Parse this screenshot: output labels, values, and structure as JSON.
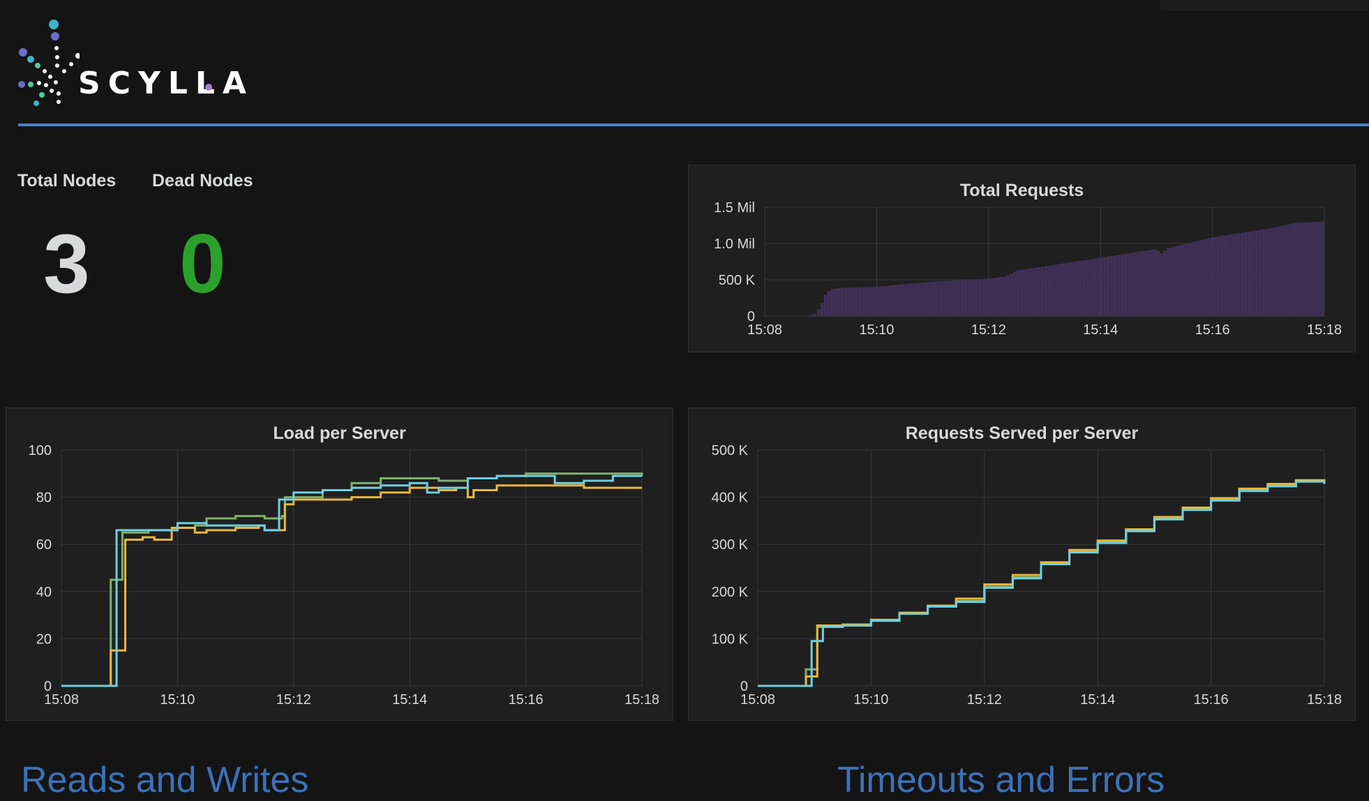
{
  "logo": {
    "text": "SCYLLA"
  },
  "stats": {
    "total_nodes": {
      "label": "Total Nodes",
      "value": "3"
    },
    "dead_nodes": {
      "label": "Dead Nodes",
      "value": "0",
      "color": "#2ca02c"
    }
  },
  "colors": {
    "accent": "#4a7fd4",
    "series": [
      "#7eb26d",
      "#eab839",
      "#6ed0e0"
    ],
    "bars": "#3e2e55"
  },
  "chart_data": [
    {
      "type": "bar",
      "title": "Total Requests",
      "xlabel": "",
      "ylabel": "",
      "x_ticks": [
        "15:08",
        "15:10",
        "15:12",
        "15:14",
        "15:16",
        "15:18"
      ],
      "y_ticks": [
        "0",
        "500 K",
        "1.0 Mil",
        "1.5 Mil"
      ],
      "xlim": [
        0,
        10
      ],
      "ylim": [
        0,
        1500000
      ],
      "grid": true,
      "points": [
        [
          0.8,
          0
        ],
        [
          0.9,
          20000
        ],
        [
          1.0,
          120000
        ],
        [
          1.1,
          300000
        ],
        [
          1.2,
          370000
        ],
        [
          1.5,
          390000
        ],
        [
          2.0,
          400000
        ],
        [
          3.0,
          470000
        ],
        [
          4.0,
          510000
        ],
        [
          4.3,
          540000
        ],
        [
          4.5,
          620000
        ],
        [
          5.0,
          680000
        ],
        [
          6.0,
          800000
        ],
        [
          7.0,
          920000
        ],
        [
          7.1,
          860000
        ],
        [
          7.2,
          930000
        ],
        [
          8.0,
          1080000
        ],
        [
          9.0,
          1200000
        ],
        [
          9.5,
          1280000
        ],
        [
          10.0,
          1300000
        ]
      ]
    },
    {
      "type": "line",
      "title": "Load per Server",
      "xlabel": "",
      "ylabel": "",
      "x_ticks": [
        "15:08",
        "15:10",
        "15:12",
        "15:14",
        "15:16",
        "15:18"
      ],
      "y_ticks": [
        "0",
        "20",
        "40",
        "60",
        "80",
        "100"
      ],
      "xlim": [
        0,
        10
      ],
      "ylim": [
        0,
        100
      ],
      "grid": true,
      "series": [
        {
          "color": "#7eb26d",
          "points": [
            [
              0,
              0
            ],
            [
              0.8,
              0
            ],
            [
              0.85,
              45
            ],
            [
              1.0,
              45
            ],
            [
              1.05,
              65
            ],
            [
              1.5,
              66
            ],
            [
              2.0,
              67
            ],
            [
              2.3,
              68
            ],
            [
              2.5,
              71
            ],
            [
              3.0,
              72
            ],
            [
              3.5,
              71
            ],
            [
              3.8,
              72
            ],
            [
              3.85,
              80
            ],
            [
              4.5,
              83
            ],
            [
              5.0,
              86
            ],
            [
              5.5,
              88
            ],
            [
              6.0,
              88
            ],
            [
              6.5,
              87
            ],
            [
              7.0,
              88
            ],
            [
              7.5,
              89
            ],
            [
              8.0,
              90
            ],
            [
              9.0,
              90
            ],
            [
              10.0,
              89
            ]
          ]
        },
        {
          "color": "#eab839",
          "points": [
            [
              0,
              0
            ],
            [
              0.8,
              0
            ],
            [
              0.85,
              15
            ],
            [
              1.05,
              15
            ],
            [
              1.1,
              62
            ],
            [
              1.4,
              63
            ],
            [
              1.5,
              63
            ],
            [
              1.6,
              62
            ],
            [
              1.9,
              67
            ],
            [
              2.3,
              65
            ],
            [
              2.5,
              66
            ],
            [
              3.0,
              67
            ],
            [
              3.4,
              68
            ],
            [
              3.5,
              66
            ],
            [
              3.8,
              66
            ],
            [
              3.85,
              77
            ],
            [
              4.0,
              79
            ],
            [
              4.5,
              79
            ],
            [
              5.0,
              80
            ],
            [
              5.5,
              82
            ],
            [
              6.0,
              84
            ],
            [
              6.5,
              83
            ],
            [
              6.8,
              84
            ],
            [
              7.0,
              80
            ],
            [
              7.1,
              83
            ],
            [
              7.5,
              85
            ],
            [
              8.0,
              85
            ],
            [
              9.0,
              84
            ],
            [
              10.0,
              84
            ]
          ]
        },
        {
          "color": "#6ed0e0",
          "points": [
            [
              0,
              0
            ],
            [
              0.9,
              0
            ],
            [
              0.95,
              66
            ],
            [
              1.5,
              66
            ],
            [
              2.0,
              69
            ],
            [
              2.5,
              68
            ],
            [
              3.0,
              68
            ],
            [
              3.5,
              66
            ],
            [
              3.7,
              66
            ],
            [
              3.75,
              79
            ],
            [
              4.0,
              82
            ],
            [
              4.5,
              83
            ],
            [
              5.0,
              84
            ],
            [
              5.5,
              85
            ],
            [
              6.0,
              86
            ],
            [
              6.3,
              82
            ],
            [
              6.5,
              84
            ],
            [
              7.0,
              88
            ],
            [
              7.5,
              89
            ],
            [
              8.0,
              89
            ],
            [
              8.5,
              86
            ],
            [
              9.0,
              87
            ],
            [
              9.5,
              89
            ],
            [
              10.0,
              89
            ]
          ]
        }
      ]
    },
    {
      "type": "line",
      "title": "Requests Served per Server",
      "xlabel": "",
      "ylabel": "",
      "x_ticks": [
        "15:08",
        "15:10",
        "15:12",
        "15:14",
        "15:16",
        "15:18"
      ],
      "y_ticks": [
        "0",
        "100 K",
        "200 K",
        "300 K",
        "400 K",
        "500 K"
      ],
      "xlim": [
        0,
        10
      ],
      "ylim": [
        0,
        500000
      ],
      "grid": true,
      "series": [
        {
          "color": "#7eb26d",
          "points": [
            [
              0,
              0
            ],
            [
              0.8,
              0
            ],
            [
              0.85,
              35000
            ],
            [
              1.0,
              35000
            ],
            [
              1.05,
              125000
            ],
            [
              1.5,
              130000
            ],
            [
              2.0,
              140000
            ],
            [
              2.5,
              155000
            ],
            [
              3.0,
              170000
            ],
            [
              3.5,
              180000
            ],
            [
              4.0,
              210000
            ],
            [
              4.5,
              230000
            ],
            [
              5.0,
              260000
            ],
            [
              5.5,
              285000
            ],
            [
              6.0,
              305000
            ],
            [
              6.5,
              330000
            ],
            [
              7.0,
              355000
            ],
            [
              7.5,
              375000
            ],
            [
              8.0,
              395000
            ],
            [
              8.5,
              415000
            ],
            [
              9.0,
              425000
            ],
            [
              9.5,
              435000
            ],
            [
              10.0,
              430000
            ]
          ]
        },
        {
          "color": "#eab839",
          "points": [
            [
              0,
              0
            ],
            [
              0.8,
              0
            ],
            [
              0.85,
              20000
            ],
            [
              1.0,
              20000
            ],
            [
              1.05,
              128000
            ],
            [
              1.5,
              130000
            ],
            [
              2.0,
              140000
            ],
            [
              2.5,
              155000
            ],
            [
              3.0,
              170000
            ],
            [
              3.5,
              185000
            ],
            [
              4.0,
              215000
            ],
            [
              4.5,
              235000
            ],
            [
              5.0,
              262000
            ],
            [
              5.5,
              288000
            ],
            [
              6.0,
              308000
            ],
            [
              6.5,
              332000
            ],
            [
              7.0,
              358000
            ],
            [
              7.5,
              378000
            ],
            [
              8.0,
              398000
            ],
            [
              8.5,
              418000
            ],
            [
              9.0,
              428000
            ],
            [
              9.5,
              436000
            ],
            [
              10.0,
              430000
            ]
          ]
        },
        {
          "color": "#6ed0e0",
          "points": [
            [
              0,
              0
            ],
            [
              0.9,
              0
            ],
            [
              0.95,
              95000
            ],
            [
              1.1,
              95000
            ],
            [
              1.15,
              125000
            ],
            [
              1.5,
              128000
            ],
            [
              2.0,
              138000
            ],
            [
              2.5,
              153000
            ],
            [
              3.0,
              168000
            ],
            [
              3.5,
              178000
            ],
            [
              4.0,
              208000
            ],
            [
              4.5,
              228000
            ],
            [
              5.0,
              258000
            ],
            [
              5.5,
              283000
            ],
            [
              6.0,
              303000
            ],
            [
              6.5,
              328000
            ],
            [
              7.0,
              353000
            ],
            [
              7.5,
              373000
            ],
            [
              8.0,
              393000
            ],
            [
              8.5,
              413000
            ],
            [
              9.0,
              423000
            ],
            [
              9.5,
              433000
            ],
            [
              10.0,
              428000
            ]
          ]
        }
      ]
    }
  ],
  "bottom": {
    "left_title": "Reads and Writes",
    "right_title": "Timeouts and Errors"
  }
}
